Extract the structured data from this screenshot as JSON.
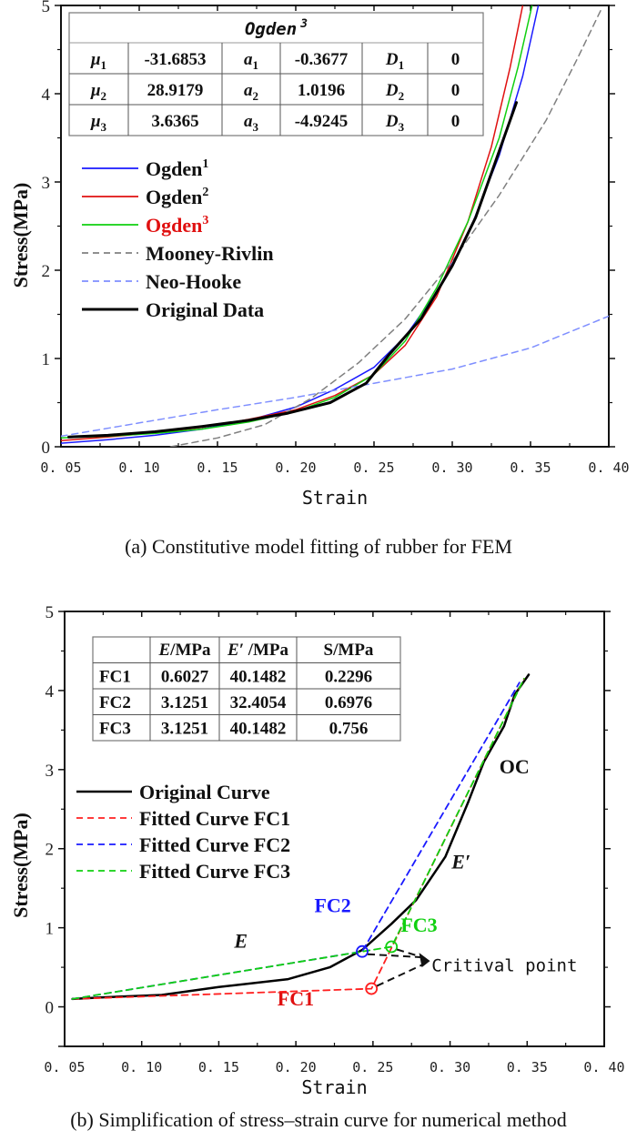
{
  "chart_data": [
    {
      "id": "a",
      "type": "line",
      "caption": "(a) Constitutive model fitting of rubber for FEM",
      "title": "",
      "xlabel": "Strain",
      "ylabel": "Stress(MPa)",
      "xlim": [
        0.05,
        0.4
      ],
      "ylim": [
        0,
        5
      ],
      "xticks": [
        "0.05",
        "0.10",
        "0.15",
        "0.20",
        "0.25",
        "0.30",
        "0.35",
        "0.40"
      ],
      "yticks": [
        "0",
        "1",
        "2",
        "3",
        "4",
        "5"
      ],
      "grid": false,
      "legend_position": "upper-left",
      "table": {
        "title": "Ogden",
        "title_sup": "3",
        "rows": [
          {
            "p1": "μ",
            "p1_sub": "1",
            "v1": "-31.6853",
            "p2": "a",
            "p2_sub": "1",
            "v2": "-0.3677",
            "p3": "D",
            "p3_sub": "1",
            "v3": "0"
          },
          {
            "p1": "μ",
            "p1_sub": "2",
            "v1": "28.9179",
            "p2": "a",
            "p2_sub": "2",
            "v2": "1.0196",
            "p3": "D",
            "p3_sub": "2",
            "v3": "0"
          },
          {
            "p1": "μ",
            "p1_sub": "3",
            "v1": "3.6365",
            "p2": "a",
            "p2_sub": "3",
            "v2": "-4.9245",
            "p3": "D",
            "p3_sub": "3",
            "v3": "0"
          }
        ]
      },
      "series": [
        {
          "name": "Ogden",
          "sup": "1",
          "color": "#1a1aff",
          "dash": false,
          "width": 1.5,
          "label_color": "#111111",
          "x": [
            0.05,
            0.08,
            0.11,
            0.14,
            0.17,
            0.2,
            0.225,
            0.25,
            0.27,
            0.29,
            0.31,
            0.33,
            0.345,
            0.355
          ],
          "y": [
            0.04,
            0.08,
            0.13,
            0.2,
            0.3,
            0.45,
            0.65,
            0.9,
            1.25,
            1.75,
            2.4,
            3.3,
            4.2,
            5.0
          ]
        },
        {
          "name": "Ogden",
          "sup": "2",
          "color": "#e01010",
          "dash": false,
          "width": 1.5,
          "label_color": "#111111",
          "x": [
            0.05,
            0.08,
            0.11,
            0.14,
            0.17,
            0.2,
            0.225,
            0.25,
            0.27,
            0.29,
            0.31,
            0.325,
            0.337,
            0.345
          ],
          "y": [
            0.07,
            0.11,
            0.16,
            0.22,
            0.31,
            0.42,
            0.58,
            0.82,
            1.15,
            1.7,
            2.55,
            3.4,
            4.3,
            5.0
          ]
        },
        {
          "name": "Ogden",
          "sup": "3",
          "color": "#10d010",
          "dash": false,
          "width": 1.5,
          "label_color": "#e01010",
          "x": [
            0.05,
            0.08,
            0.11,
            0.14,
            0.17,
            0.2,
            0.225,
            0.25,
            0.27,
            0.29,
            0.31,
            0.33,
            0.342,
            0.351
          ],
          "y": [
            0.1,
            0.12,
            0.15,
            0.2,
            0.28,
            0.4,
            0.56,
            0.82,
            1.2,
            1.8,
            2.55,
            3.5,
            4.3,
            5.0
          ]
        },
        {
          "name": "Mooney-Rivlin",
          "sup": "",
          "color": "#808080",
          "dash": true,
          "width": 1.5,
          "label_color": "#111111",
          "x": [
            0.12,
            0.15,
            0.18,
            0.21,
            0.24,
            0.27,
            0.3,
            0.33,
            0.36,
            0.38,
            0.395
          ],
          "y": [
            0.0,
            0.1,
            0.25,
            0.55,
            0.95,
            1.45,
            2.1,
            2.85,
            3.7,
            4.4,
            4.95
          ]
        },
        {
          "name": "Neo-Hooke",
          "sup": "",
          "color": "#7f8fff",
          "dash": true,
          "width": 1.5,
          "label_color": "#111111",
          "x": [
            0.05,
            0.1,
            0.15,
            0.2,
            0.25,
            0.3,
            0.35,
            0.4
          ],
          "y": [
            0.12,
            0.27,
            0.42,
            0.56,
            0.72,
            0.88,
            1.12,
            1.48
          ]
        },
        {
          "name": "Original Data",
          "sup": "",
          "color": "#000000",
          "dash": false,
          "width": 3,
          "label_color": "#111111",
          "x": [
            0.055,
            0.08,
            0.11,
            0.14,
            0.17,
            0.195,
            0.222,
            0.245,
            0.26,
            0.28,
            0.3,
            0.315,
            0.33,
            0.341
          ],
          "y": [
            0.11,
            0.13,
            0.17,
            0.23,
            0.3,
            0.38,
            0.5,
            0.72,
            1.05,
            1.45,
            2.05,
            2.6,
            3.35,
            3.9
          ]
        }
      ]
    },
    {
      "id": "b",
      "type": "line",
      "caption": "(b) Simplification of stress–strain curve for numerical method",
      "title": "",
      "xlabel": "Strain",
      "ylabel": "Stress(MPa)",
      "xlim": [
        0.05,
        0.4
      ],
      "ylim": [
        -0.5,
        5
      ],
      "xticks": [
        "0.05",
        "0.10",
        "0.15",
        "0.20",
        "0.25",
        "0.30",
        "0.35",
        "0.40"
      ],
      "yticks": [
        "0",
        "1",
        "2",
        "3",
        "4",
        "5"
      ],
      "grid": false,
      "legend_position": "middle-left",
      "table": {
        "headers": [
          {
            "main": "E",
            "rest": "/MPa"
          },
          {
            "main": "E′",
            "rest": " /MPa"
          },
          {
            "main": "",
            "rest": "S/MPa"
          }
        ],
        "rows": [
          {
            "name": "FC1",
            "E": "0.6027",
            "Ep": "40.1482",
            "S": "0.2296"
          },
          {
            "name": "FC2",
            "E": "3.1251",
            "Ep": "32.4054",
            "S": "0.6976"
          },
          {
            "name": "FC3",
            "E": "3.1251",
            "Ep": "40.1482",
            "S": "0.756"
          }
        ]
      },
      "series": [
        {
          "name": "Original Curve",
          "color": "#000000",
          "dash": false,
          "width": 2.5,
          "x": [
            0.055,
            0.075,
            0.113,
            0.15,
            0.195,
            0.222,
            0.243,
            0.262,
            0.278,
            0.297,
            0.312,
            0.322,
            0.335,
            0.342,
            0.351
          ],
          "y": [
            0.1,
            0.12,
            0.15,
            0.25,
            0.35,
            0.5,
            0.72,
            1.05,
            1.35,
            1.9,
            2.6,
            3.1,
            3.55,
            3.95,
            4.2
          ]
        },
        {
          "name": "Fitted Curve FC1",
          "color": "#ff2020",
          "dash": true,
          "width": 1.8,
          "x": [
            0.055,
            0.249,
            0.278,
            0.348
          ],
          "y": [
            0.1,
            0.23,
            1.38,
            4.15
          ]
        },
        {
          "name": "Fitted Curve FC2",
          "color": "#1a1aff",
          "dash": true,
          "width": 1.8,
          "x": [
            0.055,
            0.243,
            0.345
          ],
          "y": [
            0.1,
            0.7,
            4.1
          ]
        },
        {
          "name": "Fitted Curve FC3",
          "color": "#10d010",
          "dash": true,
          "width": 1.8,
          "x": [
            0.055,
            0.262,
            0.278,
            0.348
          ],
          "y": [
            0.1,
            0.76,
            1.38,
            4.15
          ]
        }
      ],
      "markers": [
        {
          "name": "FC1-critical",
          "x": 0.249,
          "y": 0.23,
          "color": "#ff2020"
        },
        {
          "name": "FC2-critical",
          "x": 0.243,
          "y": 0.7,
          "color": "#1a1aff"
        },
        {
          "name": "FC3-critical",
          "x": 0.262,
          "y": 0.76,
          "color": "#10d010"
        }
      ],
      "annotations": [
        {
          "text": "E",
          "italic": true,
          "x": 0.16,
          "y": 0.75,
          "color": "#111111"
        },
        {
          "text": "FC1",
          "italic": false,
          "x": 0.188,
          "y": 0.02,
          "color": "#e01010"
        },
        {
          "text": "FC2",
          "italic": false,
          "x": 0.212,
          "y": 1.2,
          "color": "#1a1aff"
        },
        {
          "text": "FC3",
          "italic": false,
          "x": 0.268,
          "y": 0.95,
          "color": "#10d010"
        },
        {
          "text": "E′",
          "italic": true,
          "x": 0.301,
          "y": 1.75,
          "color": "#111111"
        },
        {
          "text": "OC",
          "italic": false,
          "x": 0.332,
          "y": 2.95,
          "color": "#111111"
        },
        {
          "text": "Critival point",
          "mono": true,
          "x": 0.288,
          "y": 0.45,
          "color": "#111111"
        }
      ]
    }
  ]
}
